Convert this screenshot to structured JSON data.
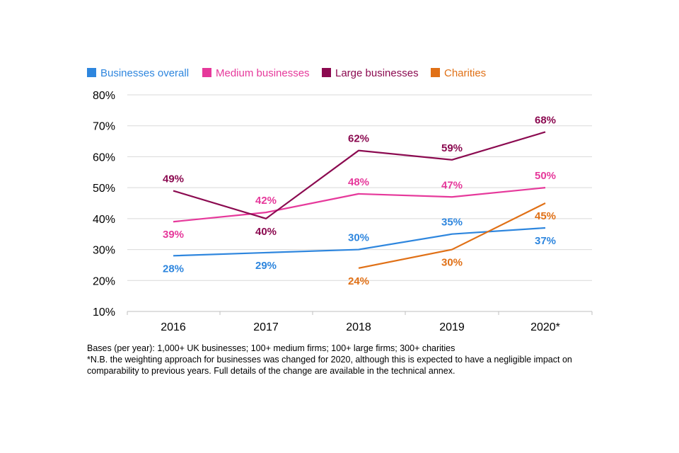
{
  "chart_data": {
    "type": "line",
    "title": "",
    "xlabel": "",
    "ylabel": "",
    "categories": [
      "2016",
      "2017",
      "2018",
      "2019",
      "2020*"
    ],
    "ylim": [
      10,
      80
    ],
    "yticks": [
      "10%",
      "20%",
      "30%",
      "40%",
      "50%",
      "60%",
      "70%",
      "80%"
    ],
    "grid": true,
    "legend_position": "top",
    "series": [
      {
        "name": "Businesses overall",
        "color": "#2E86DE",
        "values": [
          28,
          29,
          30,
          35,
          37
        ],
        "labels": [
          "28%",
          "29%",
          "30%",
          "35%",
          "37%"
        ],
        "label_side": [
          "below",
          "below",
          "above",
          "above",
          "below"
        ]
      },
      {
        "name": "Medium businesses",
        "color": "#E6399B",
        "values": [
          39,
          42,
          48,
          47,
          50
        ],
        "labels": [
          "39%",
          "42%",
          "48%",
          "47%",
          "50%"
        ],
        "label_side": [
          "below",
          "above",
          "above",
          "above",
          "above"
        ]
      },
      {
        "name": "Large businesses",
        "color": "#8B0A50",
        "values": [
          49,
          40,
          62,
          59,
          68
        ],
        "labels": [
          "49%",
          "40%",
          "62%",
          "59%",
          "68%"
        ],
        "label_side": [
          "above",
          "below",
          "above",
          "above",
          "above"
        ]
      },
      {
        "name": "Charities",
        "color": "#E07016",
        "values": [
          null,
          null,
          24,
          30,
          45
        ],
        "labels": [
          null,
          null,
          "24%",
          "30%",
          "45%"
        ],
        "label_side": [
          null,
          null,
          "below",
          "below",
          "below"
        ]
      }
    ]
  },
  "footnotes": {
    "bases": "Bases (per year): 1,000+ UK businesses; 100+ medium firms; 100+ large firms; 300+ charities",
    "note": "*N.B. the weighting approach for businesses was changed for 2020, although this is expected to have a negligible impact on comparability to previous years. Full details of the change are available in the technical annex."
  }
}
